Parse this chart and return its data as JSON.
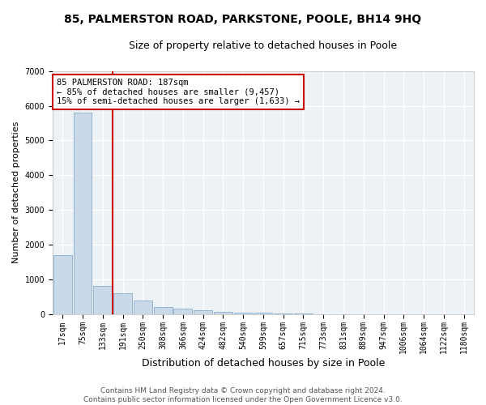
{
  "title": "85, PALMERSTON ROAD, PARKSTONE, POOLE, BH14 9HQ",
  "subtitle": "Size of property relative to detached houses in Poole",
  "xlabel": "Distribution of detached houses by size in Poole",
  "ylabel": "Number of detached properties",
  "bar_labels": [
    "17sqm",
    "75sqm",
    "133sqm",
    "191sqm",
    "250sqm",
    "308sqm",
    "366sqm",
    "424sqm",
    "482sqm",
    "540sqm",
    "599sqm",
    "657sqm",
    "715sqm",
    "773sqm",
    "831sqm",
    "889sqm",
    "947sqm",
    "1006sqm",
    "1064sqm",
    "1122sqm",
    "1180sqm"
  ],
  "bar_values": [
    1700,
    5800,
    820,
    590,
    380,
    210,
    145,
    105,
    70,
    45,
    28,
    10,
    5,
    2,
    1,
    1,
    0,
    0,
    0,
    0,
    0
  ],
  "bar_color": "#c9d9e9",
  "bar_edge_color": "#8aafc8",
  "highlight_line_color": "#cc0000",
  "vline_x": 2.5,
  "ylim": [
    0,
    7000
  ],
  "yticks": [
    0,
    1000,
    2000,
    3000,
    4000,
    5000,
    6000,
    7000
  ],
  "annotation_line1": "85 PALMERSTON ROAD: 187sqm",
  "annotation_line2": "← 85% of detached houses are smaller (9,457)",
  "annotation_line3": "15% of semi-detached houses are larger (1,633) →",
  "annotation_box_color": "#ffffff",
  "annotation_box_edge_color": "#cc0000",
  "footer_line1": "Contains HM Land Registry data © Crown copyright and database right 2024.",
  "footer_line2": "Contains public sector information licensed under the Open Government Licence v3.0.",
  "bg_color": "#edf2f7",
  "grid_color": "#ffffff",
  "title_fontsize": 10,
  "subtitle_fontsize": 9,
  "ylabel_fontsize": 8,
  "xlabel_fontsize": 9,
  "tick_fontsize": 7,
  "annotation_fontsize": 7.5,
  "footer_fontsize": 6.5
}
